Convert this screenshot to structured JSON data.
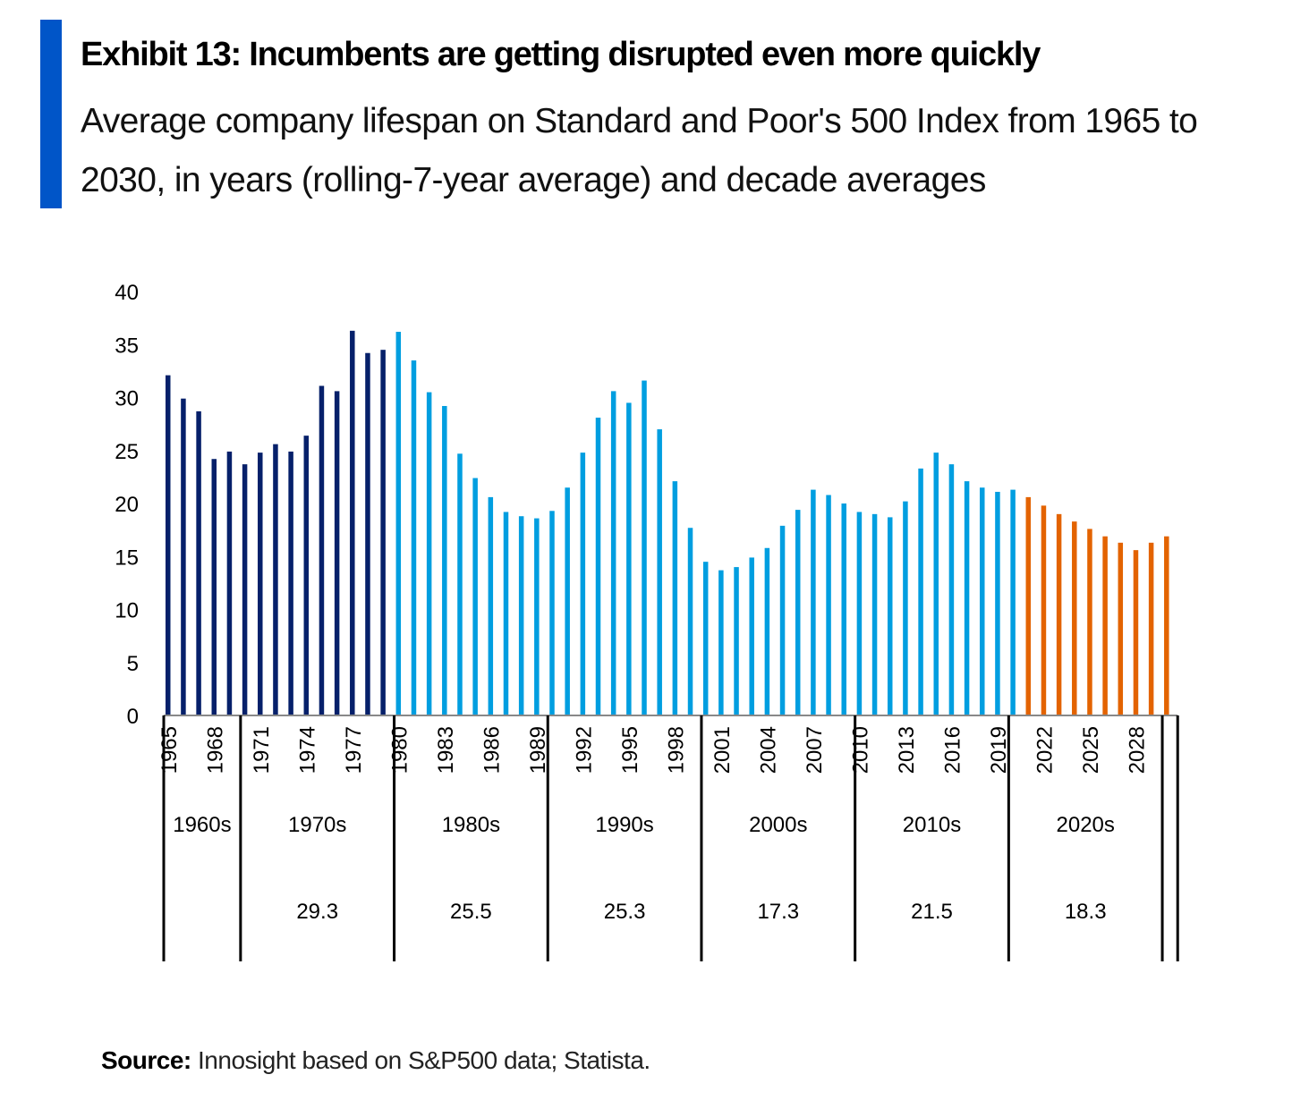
{
  "title": "Exhibit 13: Incumbents are getting disrupted even more quickly",
  "subtitle": "Average company lifespan on Standard and Poor's 500 Index from 1965 to 2030, in years (rolling-7-year average) and decade averages",
  "source_label": "Source:",
  "source_text": "Innosight based on S&P500 data; Statista.",
  "colors": {
    "accent": "#0055c8",
    "historical_early": "#06206a",
    "historical": "#009ee0",
    "forecast": "#e36300"
  },
  "chart_data": {
    "type": "bar",
    "title": "",
    "xlabel": "",
    "ylabel": "",
    "ylim": [
      0,
      40
    ],
    "yticks": [
      0,
      5,
      10,
      15,
      20,
      25,
      30,
      35,
      40
    ],
    "grid": false,
    "categories": [
      1965,
      1966,
      1967,
      1968,
      1969,
      1970,
      1971,
      1972,
      1973,
      1974,
      1975,
      1976,
      1977,
      1978,
      1979,
      1980,
      1981,
      1982,
      1983,
      1984,
      1985,
      1986,
      1987,
      1988,
      1989,
      1990,
      1991,
      1992,
      1993,
      1994,
      1995,
      1996,
      1997,
      1998,
      1999,
      2000,
      2001,
      2002,
      2003,
      2004,
      2005,
      2006,
      2007,
      2008,
      2009,
      2010,
      2011,
      2012,
      2013,
      2014,
      2015,
      2016,
      2017,
      2018,
      2019,
      2020,
      2021,
      2022,
      2023,
      2024,
      2025,
      2026,
      2027,
      2028,
      2029,
      2030
    ],
    "values": [
      32.1,
      29.9,
      28.7,
      24.2,
      24.9,
      23.7,
      24.8,
      25.6,
      24.9,
      26.4,
      31.1,
      30.6,
      36.3,
      34.2,
      34.5,
      36.2,
      33.5,
      30.5,
      29.2,
      24.7,
      22.4,
      20.6,
      19.2,
      18.8,
      18.6,
      19.3,
      21.5,
      24.8,
      28.1,
      30.6,
      29.5,
      31.6,
      27.0,
      22.1,
      17.7,
      14.5,
      13.7,
      14.0,
      14.9,
      15.8,
      17.9,
      19.4,
      21.3,
      20.8,
      20.0,
      19.2,
      19.0,
      18.7,
      20.2,
      23.3,
      24.8,
      23.7,
      22.1,
      21.5,
      21.1,
      21.3,
      20.6,
      19.8,
      19.0,
      18.3,
      17.6,
      16.9,
      16.3,
      15.6,
      16.3,
      16.9
    ],
    "bar_color_groups": [
      {
        "from": 1965,
        "to": 1979,
        "color": "#06206a"
      },
      {
        "from": 1980,
        "to": 2020,
        "color": "#009ee0"
      },
      {
        "from": 2021,
        "to": 2030,
        "color": "#e36300"
      }
    ],
    "xtick_labels": [
      "1965",
      "1968",
      "1971",
      "1974",
      "1977",
      "1980",
      "1983",
      "1986",
      "1989",
      "1992",
      "1995",
      "1998",
      "2001",
      "2004",
      "2007",
      "2010",
      "2013",
      "2016",
      "2019",
      "2022",
      "2025",
      "2028"
    ],
    "decades": [
      {
        "label": "1960s",
        "average": ""
      },
      {
        "label": "1970s",
        "average": "29.3"
      },
      {
        "label": "1980s",
        "average": "25.5"
      },
      {
        "label": "1990s",
        "average": "25.3"
      },
      {
        "label": "2000s",
        "average": "17.3"
      },
      {
        "label": "2010s",
        "average": "21.5"
      },
      {
        "label": "2020s",
        "average": "18.3"
      }
    ]
  }
}
